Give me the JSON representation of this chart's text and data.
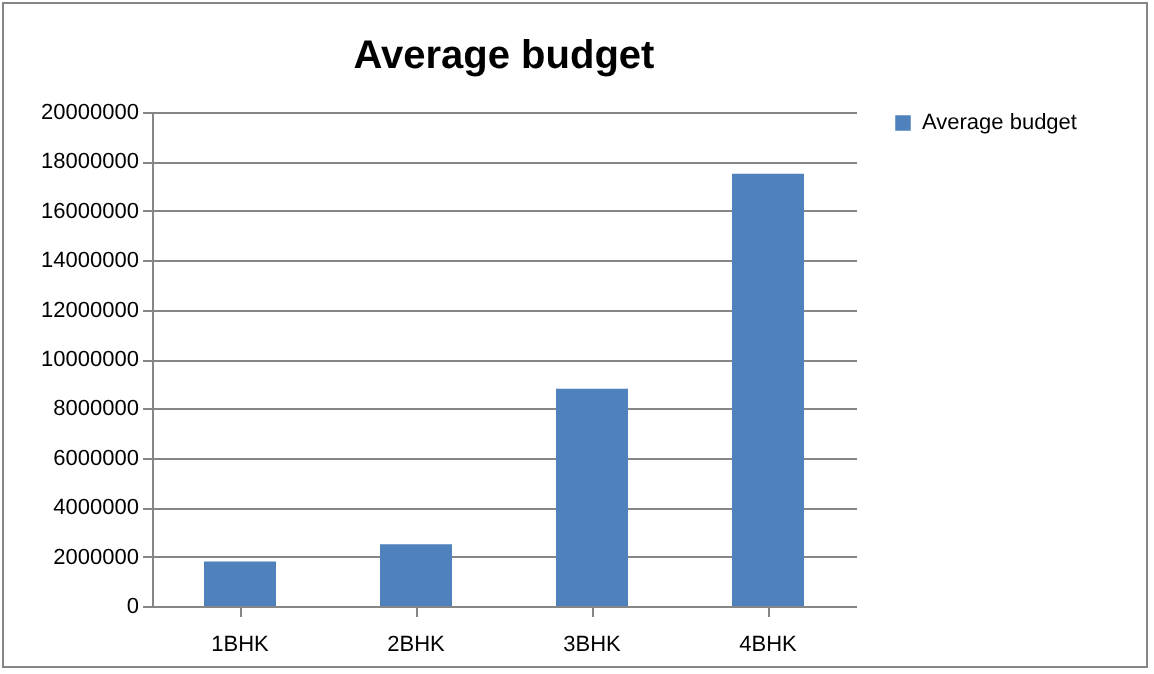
{
  "chart_data": {
    "type": "bar",
    "title": "Average budget",
    "categories": [
      "1BHK",
      "2BHK",
      "3BHK",
      "4BHK"
    ],
    "series": [
      {
        "name": "Average budget",
        "color": "#4f81bd",
        "values": [
          1800000,
          2500000,
          8800000,
          17500000
        ]
      }
    ],
    "ylim": [
      0,
      20000000
    ],
    "yticks": [
      0,
      2000000,
      4000000,
      6000000,
      8000000,
      10000000,
      12000000,
      14000000,
      16000000,
      18000000,
      20000000
    ],
    "grid": "y",
    "legend": "right"
  }
}
